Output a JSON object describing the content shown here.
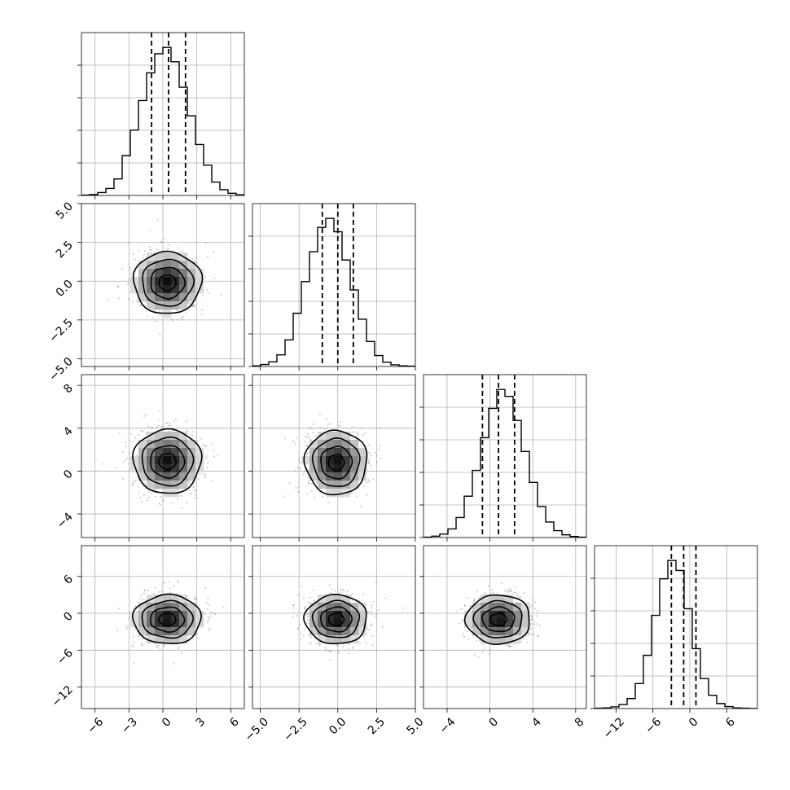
{
  "chart_data": {
    "type": "corner",
    "grid": true,
    "params": [
      {
        "range": [
          -7.2,
          7.2
        ],
        "ticks": [
          -6,
          -3,
          0,
          3,
          6
        ],
        "tick_labels": [
          "−6",
          "−3",
          "0",
          "3",
          "6"
        ],
        "mean": 0.5,
        "sigma": 1.5,
        "quantiles": [
          -1.0,
          0.5,
          2.0
        ]
      },
      {
        "range": [
          -5.5,
          5.0
        ],
        "ticks": [
          -5.0,
          -2.5,
          0.0,
          2.5,
          5.0
        ],
        "tick_labels": [
          "−5.0",
          "−2.5",
          "0.0",
          "2.5",
          "5.0"
        ],
        "mean": 0.0,
        "sigma": 1.0,
        "quantiles": [
          -1.0,
          0.0,
          1.0
        ]
      },
      {
        "range": [
          -6.2,
          9.0
        ],
        "ticks": [
          -4,
          0,
          4,
          8
        ],
        "tick_labels": [
          "−4",
          "0",
          "4",
          "8"
        ],
        "mean": 0.8,
        "sigma": 1.5,
        "quantiles": [
          -0.7,
          0.8,
          2.3
        ]
      },
      {
        "range": [
          -15.5,
          11.0
        ],
        "ticks": [
          -12,
          -6,
          0,
          6
        ],
        "tick_labels": [
          "−12",
          "−6",
          "0",
          "6"
        ],
        "mean": -1.0,
        "sigma": 2.0,
        "quantiles": [
          -3.0,
          -1.0,
          1.0
        ]
      }
    ],
    "histograms": [
      {
        "param": 0,
        "bins": [
          -7.2,
          -6.48,
          -5.76,
          -5.04,
          -4.32,
          -3.6,
          -2.88,
          -2.16,
          -1.44,
          -0.72,
          0.0,
          0.72,
          1.44,
          2.16,
          2.88,
          3.6,
          4.32,
          5.04,
          5.76,
          6.48,
          7.2
        ],
        "counts": [
          1,
          3,
          9,
          22,
          52,
          125,
          205,
          298,
          385,
          445,
          465,
          420,
          340,
          250,
          160,
          95,
          42,
          18,
          7,
          2
        ]
      },
      {
        "param": 1,
        "bins": [
          -5.5,
          -4.975,
          -4.45,
          -3.925,
          -3.4,
          -2.875,
          -2.35,
          -1.825,
          -1.3,
          -0.775,
          -0.25,
          0.275,
          0.8,
          1.325,
          1.85,
          2.375,
          2.9,
          3.425,
          3.95,
          4.475,
          5.0
        ],
        "counts": [
          2,
          6,
          14,
          35,
          80,
          160,
          255,
          345,
          418,
          445,
          405,
          320,
          230,
          142,
          75,
          33,
          13,
          5,
          2,
          1
        ]
      },
      {
        "param": 2,
        "bins": [
          -6.2,
          -5.44,
          -4.68,
          -3.92,
          -3.16,
          -2.4,
          -1.64,
          -0.88,
          -0.12,
          0.64,
          1.4,
          2.16,
          2.92,
          3.68,
          4.44,
          5.2,
          5.96,
          6.72,
          7.48,
          8.24,
          9.0
        ],
        "counts": [
          1,
          4,
          10,
          25,
          58,
          120,
          195,
          290,
          375,
          430,
          410,
          340,
          250,
          160,
          90,
          45,
          20,
          8,
          3,
          1
        ]
      },
      {
        "param": 3,
        "bins": [
          -15.5,
          -14.175,
          -12.85,
          -11.525,
          -10.2,
          -8.875,
          -7.55,
          -6.225,
          -4.9,
          -3.575,
          -2.25,
          -0.925,
          0.4,
          1.725,
          3.05,
          4.375,
          5.7,
          7.025,
          8.35,
          9.675,
          11.0
        ],
        "counts": [
          1,
          2,
          5,
          12,
          30,
          75,
          160,
          280,
          390,
          445,
          415,
          300,
          180,
          90,
          40,
          15,
          6,
          2,
          1,
          0
        ]
      }
    ],
    "density_peaks": [
      {
        "x_param": 0,
        "y_param": 1,
        "x": 0.4,
        "y": -0.1
      },
      {
        "x_param": 0,
        "y_param": 2,
        "x": 0.4,
        "y": 0.9
      },
      {
        "x_param": 1,
        "y_param": 2,
        "x": -0.1,
        "y": 0.8
      },
      {
        "x_param": 0,
        "y_param": 3,
        "x": 0.4,
        "y": -1.0
      },
      {
        "x_param": 1,
        "y_param": 3,
        "x": -0.1,
        "y": -1.0
      },
      {
        "x_param": 2,
        "y_param": 3,
        "x": 0.8,
        "y": -1.0
      }
    ],
    "contour_levels_sigma": [
      0.5,
      1.0,
      1.5,
      2.0
    ],
    "colors": {
      "frame": "#000000",
      "grid": "#b0b0b0",
      "hist": "#000000",
      "density_dark": "#000000",
      "density_light": "#ffffff",
      "samples": "#7a7a7a"
    }
  }
}
